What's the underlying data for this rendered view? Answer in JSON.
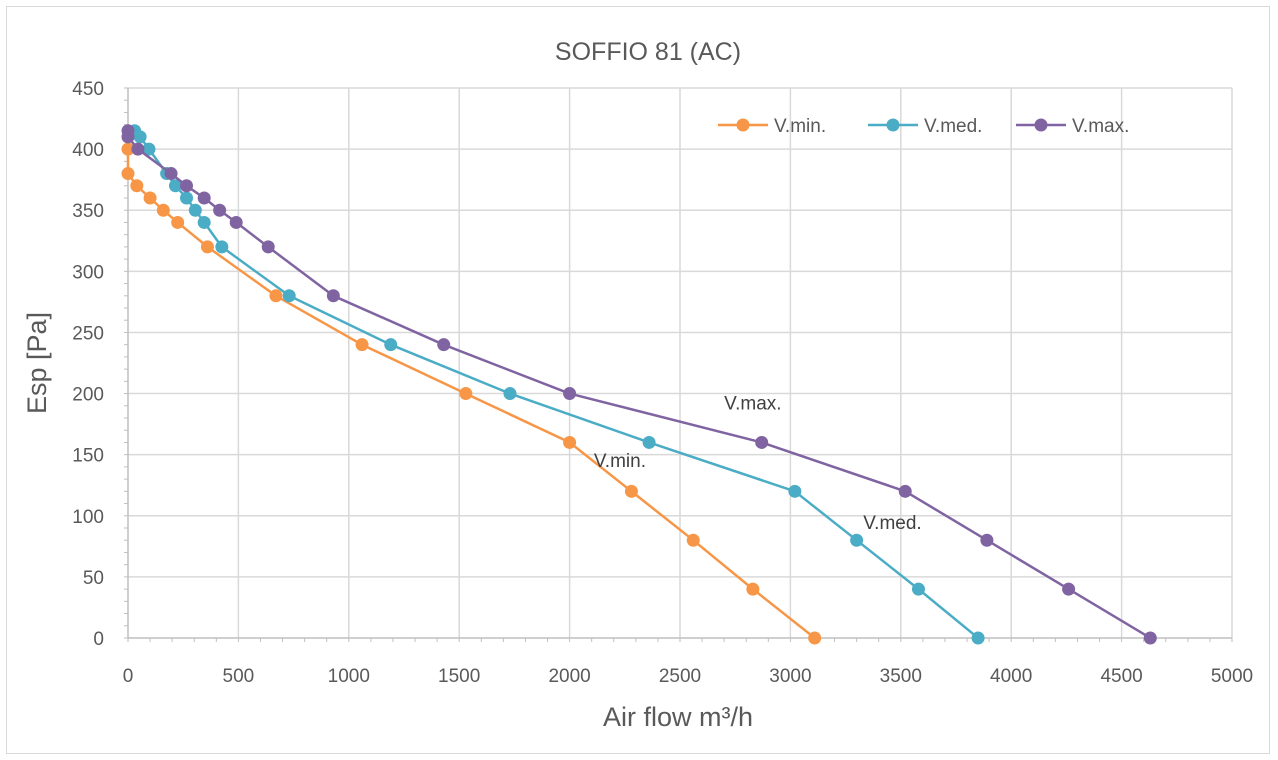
{
  "chart_data": {
    "type": "line",
    "title": "SOFFIO 81 (AC)",
    "xlabel": "Air flow m³/h",
    "ylabel": "Esp [Pa]",
    "xlim": [
      0,
      5000
    ],
    "ylim": [
      0,
      450
    ],
    "x_ticks": [
      0,
      500,
      1000,
      1500,
      2000,
      2500,
      3000,
      3500,
      4000,
      4500,
      5000
    ],
    "y_ticks": [
      0,
      50,
      100,
      150,
      200,
      250,
      300,
      350,
      400,
      450
    ],
    "grid": true,
    "legend_position": "top-right",
    "series": [
      {
        "name": "V.min.",
        "color": "#f79646",
        "x": [
          0,
          0,
          40,
          100,
          160,
          225,
          360,
          670,
          1060,
          1530,
          2000,
          2280,
          2560,
          2830,
          3110
        ],
        "y": [
          400,
          380,
          370,
          360,
          350,
          340,
          320,
          280,
          240,
          200,
          160,
          120,
          80,
          40,
          0
        ]
      },
      {
        "name": "V.med.",
        "color": "#4bacc6",
        "x": [
          30,
          55,
          95,
          175,
          215,
          265,
          305,
          345,
          425,
          730,
          1190,
          1730,
          2360,
          3020,
          3300,
          3580,
          3850
        ],
        "y": [
          415,
          410,
          400,
          380,
          370,
          360,
          350,
          340,
          320,
          280,
          240,
          200,
          160,
          120,
          80,
          40,
          0
        ]
      },
      {
        "name": "V.max.",
        "color": "#8064a2",
        "x": [
          0,
          0,
          45,
          195,
          265,
          345,
          415,
          490,
          635,
          930,
          1430,
          2000,
          2870,
          3520,
          3890,
          4260,
          4630
        ],
        "y": [
          415,
          410,
          400,
          380,
          370,
          360,
          350,
          340,
          320,
          280,
          240,
          200,
          160,
          120,
          80,
          40,
          0
        ]
      }
    ],
    "annotations": [
      {
        "text": "V.max.",
        "x": 2700,
        "y": 187
      },
      {
        "text": "V.min.",
        "x": 2110,
        "y": 140
      },
      {
        "text": "V.med.",
        "x": 3330,
        "y": 89
      }
    ]
  }
}
